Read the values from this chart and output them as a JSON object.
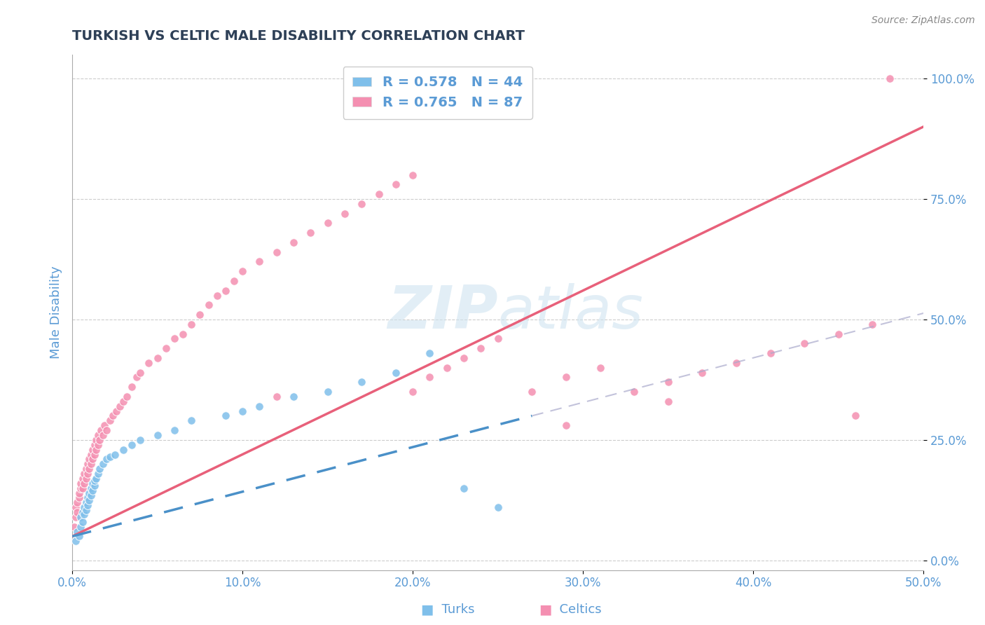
{
  "title": "TURKISH VS CELTIC MALE DISABILITY CORRELATION CHART",
  "source_text": "Source: ZipAtlas.com",
  "ylabel": "Male Disability",
  "xlim": [
    0.0,
    0.5
  ],
  "ylim": [
    -0.02,
    1.05
  ],
  "xtick_vals": [
    0.0,
    0.1,
    0.2,
    0.3,
    0.4,
    0.5
  ],
  "xtick_labels": [
    "0.0%",
    "10.0%",
    "20.0%",
    "30.0%",
    "40.0%",
    "50.0%"
  ],
  "ytick_vals": [
    0.0,
    0.25,
    0.5,
    0.75,
    1.0
  ],
  "ytick_labels": [
    "0.0%",
    "25.0%",
    "50.0%",
    "75.0%",
    "100.0%"
  ],
  "turks_color": "#7fbfea",
  "celtics_color": "#f48fb1",
  "turks_line_color": "#4a90c8",
  "celtics_line_color": "#e8607a",
  "turks_R": 0.578,
  "turks_N": 44,
  "celtics_R": 0.765,
  "celtics_N": 87,
  "background_color": "#ffffff",
  "grid_color": "#cccccc",
  "axis_color": "#aaaaaa",
  "label_color": "#5b9bd5",
  "title_color": "#2e4057",
  "watermark_color": "#d0e4f0",
  "watermark_alpha": 0.6,
  "turks_x": [
    0.002,
    0.003,
    0.004,
    0.005,
    0.005,
    0.006,
    0.006,
    0.007,
    0.007,
    0.008,
    0.008,
    0.009,
    0.009,
    0.01,
    0.01,
    0.011,
    0.011,
    0.012,
    0.012,
    0.013,
    0.013,
    0.014,
    0.015,
    0.016,
    0.018,
    0.02,
    0.022,
    0.025,
    0.03,
    0.035,
    0.04,
    0.05,
    0.06,
    0.07,
    0.09,
    0.1,
    0.11,
    0.13,
    0.15,
    0.17,
    0.19,
    0.21,
    0.23,
    0.25
  ],
  "turks_y": [
    0.04,
    0.06,
    0.05,
    0.07,
    0.09,
    0.08,
    0.1,
    0.095,
    0.11,
    0.105,
    0.12,
    0.115,
    0.13,
    0.125,
    0.14,
    0.135,
    0.15,
    0.145,
    0.16,
    0.155,
    0.165,
    0.17,
    0.18,
    0.19,
    0.2,
    0.21,
    0.215,
    0.22,
    0.23,
    0.24,
    0.25,
    0.26,
    0.27,
    0.29,
    0.3,
    0.31,
    0.32,
    0.34,
    0.35,
    0.37,
    0.39,
    0.43,
    0.15,
    0.11
  ],
  "celtics_x": [
    0.001,
    0.002,
    0.002,
    0.003,
    0.003,
    0.004,
    0.004,
    0.005,
    0.005,
    0.006,
    0.006,
    0.007,
    0.007,
    0.008,
    0.008,
    0.009,
    0.009,
    0.01,
    0.01,
    0.011,
    0.011,
    0.012,
    0.012,
    0.013,
    0.013,
    0.014,
    0.014,
    0.015,
    0.015,
    0.016,
    0.017,
    0.018,
    0.019,
    0.02,
    0.022,
    0.024,
    0.026,
    0.028,
    0.03,
    0.032,
    0.035,
    0.038,
    0.04,
    0.045,
    0.05,
    0.055,
    0.06,
    0.065,
    0.07,
    0.075,
    0.08,
    0.085,
    0.09,
    0.095,
    0.1,
    0.11,
    0.12,
    0.13,
    0.14,
    0.15,
    0.16,
    0.17,
    0.18,
    0.19,
    0.2,
    0.21,
    0.22,
    0.23,
    0.24,
    0.25,
    0.27,
    0.29,
    0.31,
    0.33,
    0.35,
    0.37,
    0.39,
    0.41,
    0.43,
    0.45,
    0.47,
    0.46,
    0.35,
    0.29,
    0.2,
    0.12,
    0.48
  ],
  "celtics_y": [
    0.07,
    0.09,
    0.11,
    0.1,
    0.12,
    0.13,
    0.14,
    0.15,
    0.16,
    0.15,
    0.17,
    0.16,
    0.18,
    0.17,
    0.19,
    0.18,
    0.2,
    0.19,
    0.21,
    0.2,
    0.22,
    0.21,
    0.23,
    0.22,
    0.24,
    0.23,
    0.25,
    0.24,
    0.26,
    0.25,
    0.27,
    0.26,
    0.28,
    0.27,
    0.29,
    0.3,
    0.31,
    0.32,
    0.33,
    0.34,
    0.36,
    0.38,
    0.39,
    0.41,
    0.42,
    0.44,
    0.46,
    0.47,
    0.49,
    0.51,
    0.53,
    0.55,
    0.56,
    0.58,
    0.6,
    0.62,
    0.64,
    0.66,
    0.68,
    0.7,
    0.72,
    0.74,
    0.76,
    0.78,
    0.8,
    0.38,
    0.4,
    0.42,
    0.44,
    0.46,
    0.35,
    0.38,
    0.4,
    0.35,
    0.37,
    0.39,
    0.41,
    0.43,
    0.45,
    0.47,
    0.49,
    0.3,
    0.33,
    0.28,
    0.35,
    0.34,
    1.0
  ],
  "celtics_regline_x": [
    0.0,
    0.5
  ],
  "celtics_regline_y": [
    0.05,
    0.9
  ],
  "turks_regline_x": [
    0.0,
    0.27
  ],
  "turks_regline_y": [
    0.05,
    0.3
  ]
}
